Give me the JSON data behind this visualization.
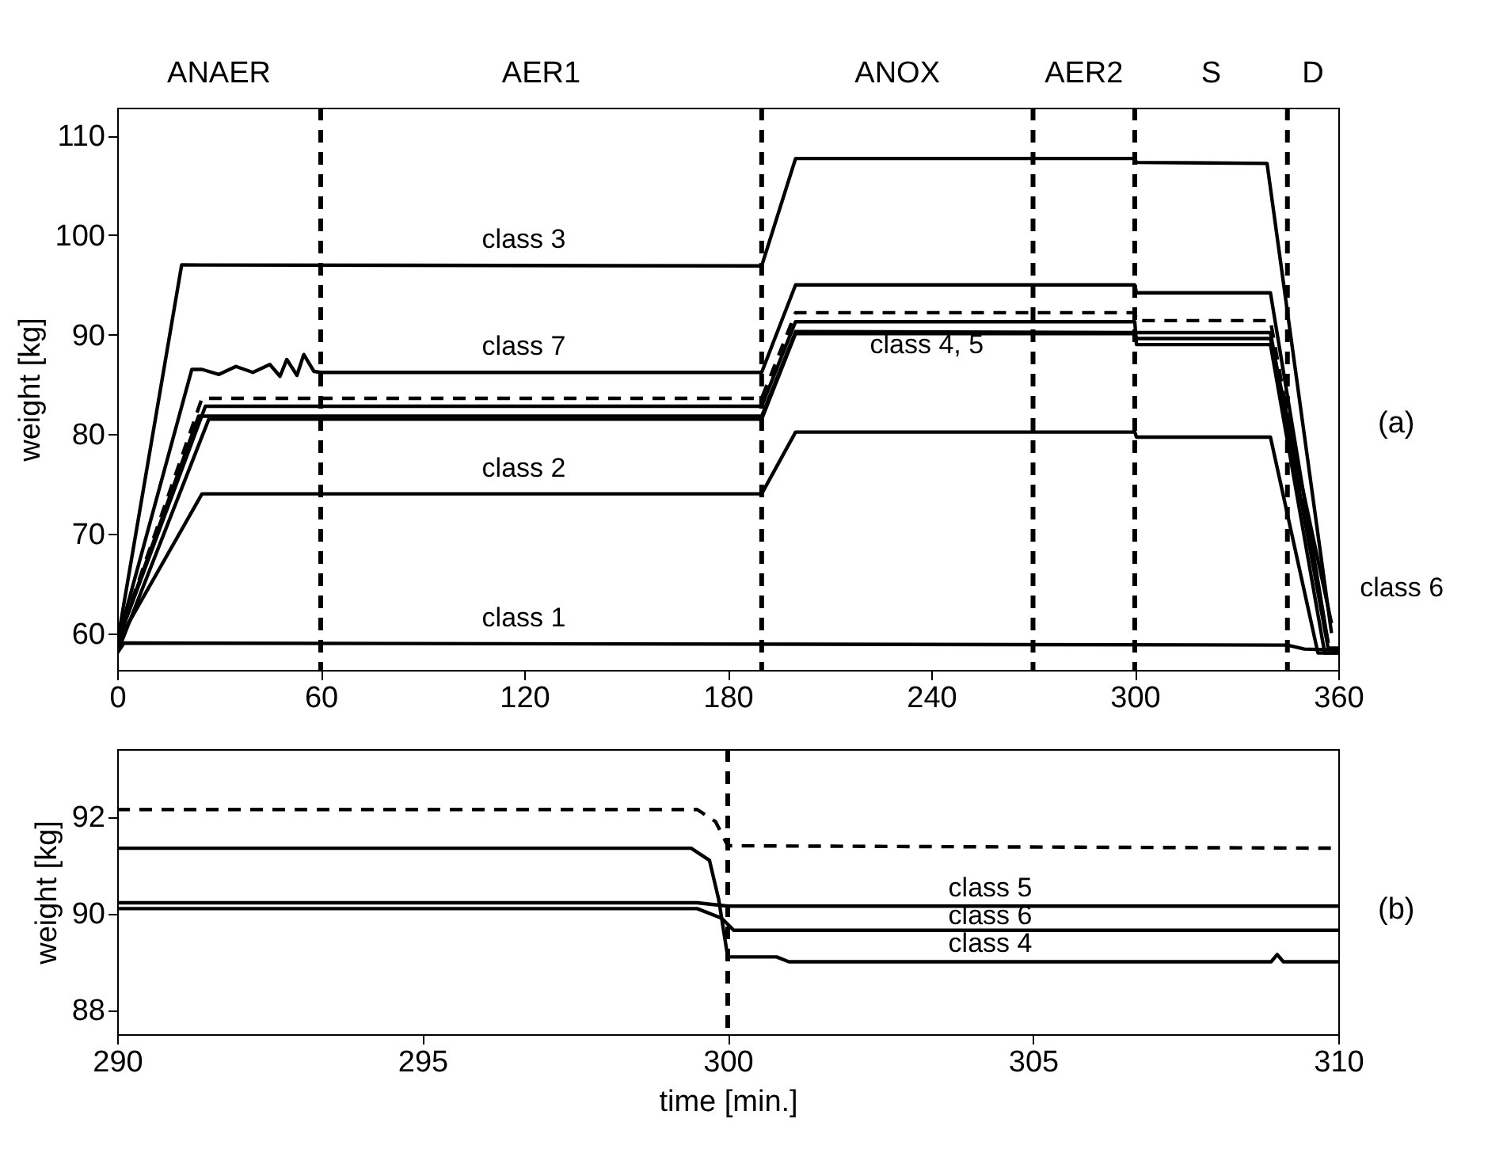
{
  "chart_data": [
    {
      "type": "line",
      "ylabel": "weight [kg]",
      "xlim": [
        0,
        360
      ],
      "xticks": [
        0,
        60,
        120,
        180,
        240,
        300,
        360
      ],
      "ylim": [
        56.3,
        112.8
      ],
      "yticks": [
        60,
        70,
        80,
        90,
        100,
        110
      ],
      "grid": false,
      "legend": false,
      "series": [
        {
          "name": "class 1",
          "color": "#000000",
          "line_style": "solid",
          "x": [
            0,
            2,
            345,
            350,
            360
          ],
          "values": [
            58,
            59,
            58.8,
            58.4,
            58.3
          ]
        },
        {
          "name": "class 2",
          "color": "#000000",
          "line_style": "solid",
          "x": [
            0,
            25,
            190,
            200,
            300,
            300.5,
            340,
            354,
            360
          ],
          "values": [
            59,
            74,
            74,
            80.2,
            80.2,
            79.7,
            79.7,
            58,
            58
          ]
        },
        {
          "name": "class 3",
          "color": "#000000",
          "line_style": "solid",
          "x": [
            0,
            19,
            190,
            200,
            300,
            300.5,
            339,
            358
          ],
          "values": [
            59,
            97,
            96.9,
            107.7,
            107.7,
            107.3,
            107.2,
            60
          ]
        },
        {
          "name": "class 4, 5",
          "color": "#000000",
          "line_style": "solid",
          "x": [
            0,
            26,
            190,
            200,
            300,
            300.5,
            340,
            356,
            360
          ],
          "values": [
            59,
            82.8,
            82.8,
            91.3,
            91.3,
            89,
            89,
            58,
            58
          ]
        },
        {
          "color": "#000000",
          "line_style": "solid",
          "x": [
            0,
            24,
            190,
            200,
            300,
            300.5,
            340,
            357,
            360
          ],
          "values": [
            59,
            81.8,
            81.8,
            90.3,
            90.2,
            90.2,
            90.2,
            58.5,
            58.5
          ]
        },
        {
          "name": "class 6",
          "color": "#000000",
          "line_style": "solid",
          "x": [
            0,
            27,
            190,
            200,
            300,
            300.5,
            340,
            358
          ],
          "values": [
            58,
            81.5,
            81.5,
            90.1,
            90.1,
            89.6,
            89.6,
            61
          ]
        },
        {
          "name": "class 7",
          "color": "#000000",
          "line_style": "solid",
          "x": [
            0,
            22,
            25,
            30,
            35,
            40,
            45,
            48,
            50,
            53,
            55,
            58,
            60,
            190,
            200,
            300,
            300.5,
            340,
            357
          ],
          "values": [
            59,
            86.5,
            86.5,
            86,
            86.8,
            86.2,
            87,
            85.8,
            87.5,
            85.9,
            88,
            86.3,
            86.2,
            86.2,
            95,
            95,
            94.2,
            94.2,
            59
          ]
        },
        {
          "color": "#000000",
          "line_style": "dashed",
          "x": [
            0,
            25,
            190,
            200,
            300,
            300.5,
            340,
            357
          ],
          "values": [
            59,
            83.6,
            83.6,
            92.2,
            92.2,
            91.4,
            91.4,
            59
          ]
        }
      ],
      "ref_lines": [
        {
          "axis": "x",
          "value": 60,
          "line_style": "dashed"
        },
        {
          "axis": "x",
          "value": 190,
          "line_style": "dashed"
        },
        {
          "axis": "x",
          "value": 270,
          "line_style": "dashed"
        },
        {
          "axis": "x",
          "value": 300,
          "line_style": "dashed"
        },
        {
          "axis": "x",
          "value": 345,
          "line_style": "dashed"
        }
      ],
      "annotations": [
        "ANAER",
        "AER1",
        "ANOX",
        "AER2",
        "S",
        "D",
        "(a)"
      ]
    },
    {
      "type": "line",
      "xlabel": "time [min.]",
      "ylabel": "weight [kg]",
      "xlim": [
        290,
        310
      ],
      "xticks": [
        290,
        295,
        300,
        305,
        310
      ],
      "ylim": [
        87.5,
        93.4
      ],
      "yticks": [
        88,
        90,
        92
      ],
      "grid": false,
      "legend": false,
      "series": [
        {
          "color": "#000000",
          "line_style": "dashed",
          "x": [
            290,
            299.5,
            299.8,
            300,
            310
          ],
          "values": [
            92.15,
            92.15,
            91.9,
            91.4,
            91.35
          ]
        },
        {
          "name": "class 4",
          "color": "#000000",
          "line_style": "solid",
          "x": [
            290,
            299.4,
            299.7,
            299.85,
            300,
            300.8,
            301,
            308.9,
            309,
            309.1,
            310
          ],
          "values": [
            91.35,
            91.35,
            91.1,
            90.3,
            89.1,
            89.1,
            89.0,
            89.0,
            89.15,
            89.0,
            89.0
          ]
        },
        {
          "name": "class 5",
          "color": "#000000",
          "line_style": "solid",
          "x": [
            290,
            299.5,
            300,
            310
          ],
          "values": [
            90.22,
            90.22,
            90.15,
            90.15
          ]
        },
        {
          "name": "class 6",
          "color": "#000000",
          "line_style": "solid",
          "x": [
            290,
            299.5,
            299.9,
            300.1,
            310
          ],
          "values": [
            90.1,
            90.1,
            89.9,
            89.65,
            89.65
          ]
        }
      ],
      "ref_lines": [
        {
          "axis": "x",
          "value": 300,
          "line_style": "dashed"
        }
      ],
      "annotations": [
        "(b)"
      ]
    }
  ]
}
